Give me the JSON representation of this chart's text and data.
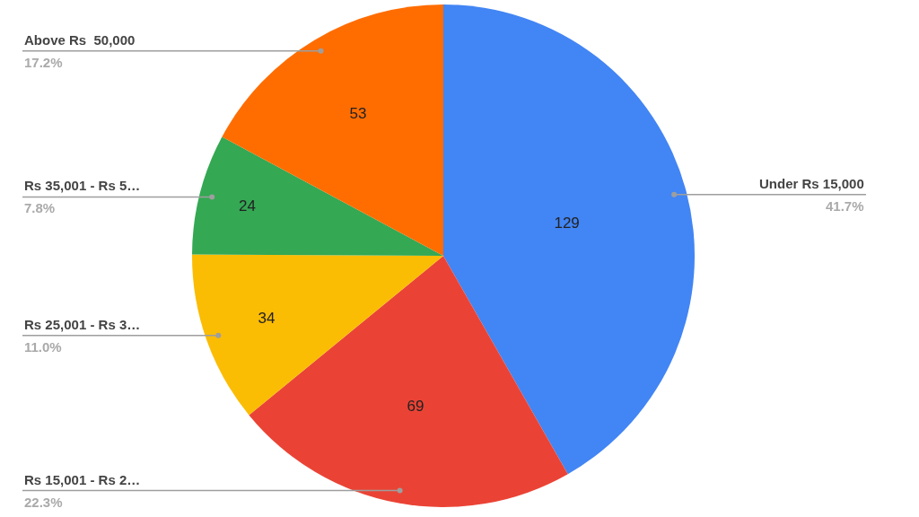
{
  "chart_data": {
    "type": "pie",
    "categories": [
      "Under Rs 15,000",
      "Rs 15,001 - Rs 2…",
      "Rs 25,001 - Rs 3…",
      "Rs 35,001 - Rs 5…",
      "Above Rs  50,000"
    ],
    "values": [
      129,
      69,
      34,
      24,
      53
    ],
    "colors": [
      "#4285f4",
      "#ea4335",
      "#fbbc04",
      "#34a853",
      "#ff6d01"
    ],
    "data_labels": true,
    "annotations": [
      "41.7%",
      "22.3%",
      "11.0%",
      "7.8%",
      "17.2%"
    ],
    "legend": false
  }
}
